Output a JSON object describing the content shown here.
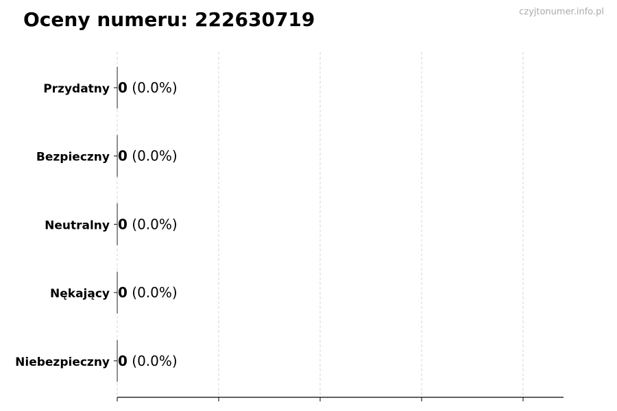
{
  "header": {
    "title": "Oceny numeru: 222630719",
    "watermark": "czyjtonumer.info.pl"
  },
  "chart_data": {
    "type": "bar",
    "orientation": "horizontal",
    "categories": [
      "Przydatny",
      "Bezpieczny",
      "Neutralny",
      "Nękający",
      "Niebezpieczny"
    ],
    "values": [
      0,
      0,
      0,
      0,
      0
    ],
    "data_labels": [
      {
        "count": "0",
        "percent": "(0.0%)"
      },
      {
        "count": "0",
        "percent": "(0.0%)"
      },
      {
        "count": "0",
        "percent": "(0.0%)"
      },
      {
        "count": "0",
        "percent": "(0.0%)"
      },
      {
        "count": "0",
        "percent": "(0.0%)"
      }
    ],
    "xlim": [
      0,
      1.1
    ],
    "x_gridlines": [
      0,
      0.25,
      0.5,
      0.75,
      1.0
    ],
    "x_tick_labels": false,
    "grid": "x dashed",
    "title": "Oceny numeru: 222630719",
    "colors": {
      "bar_edge": "#333333",
      "grid": "#cccccc"
    }
  }
}
